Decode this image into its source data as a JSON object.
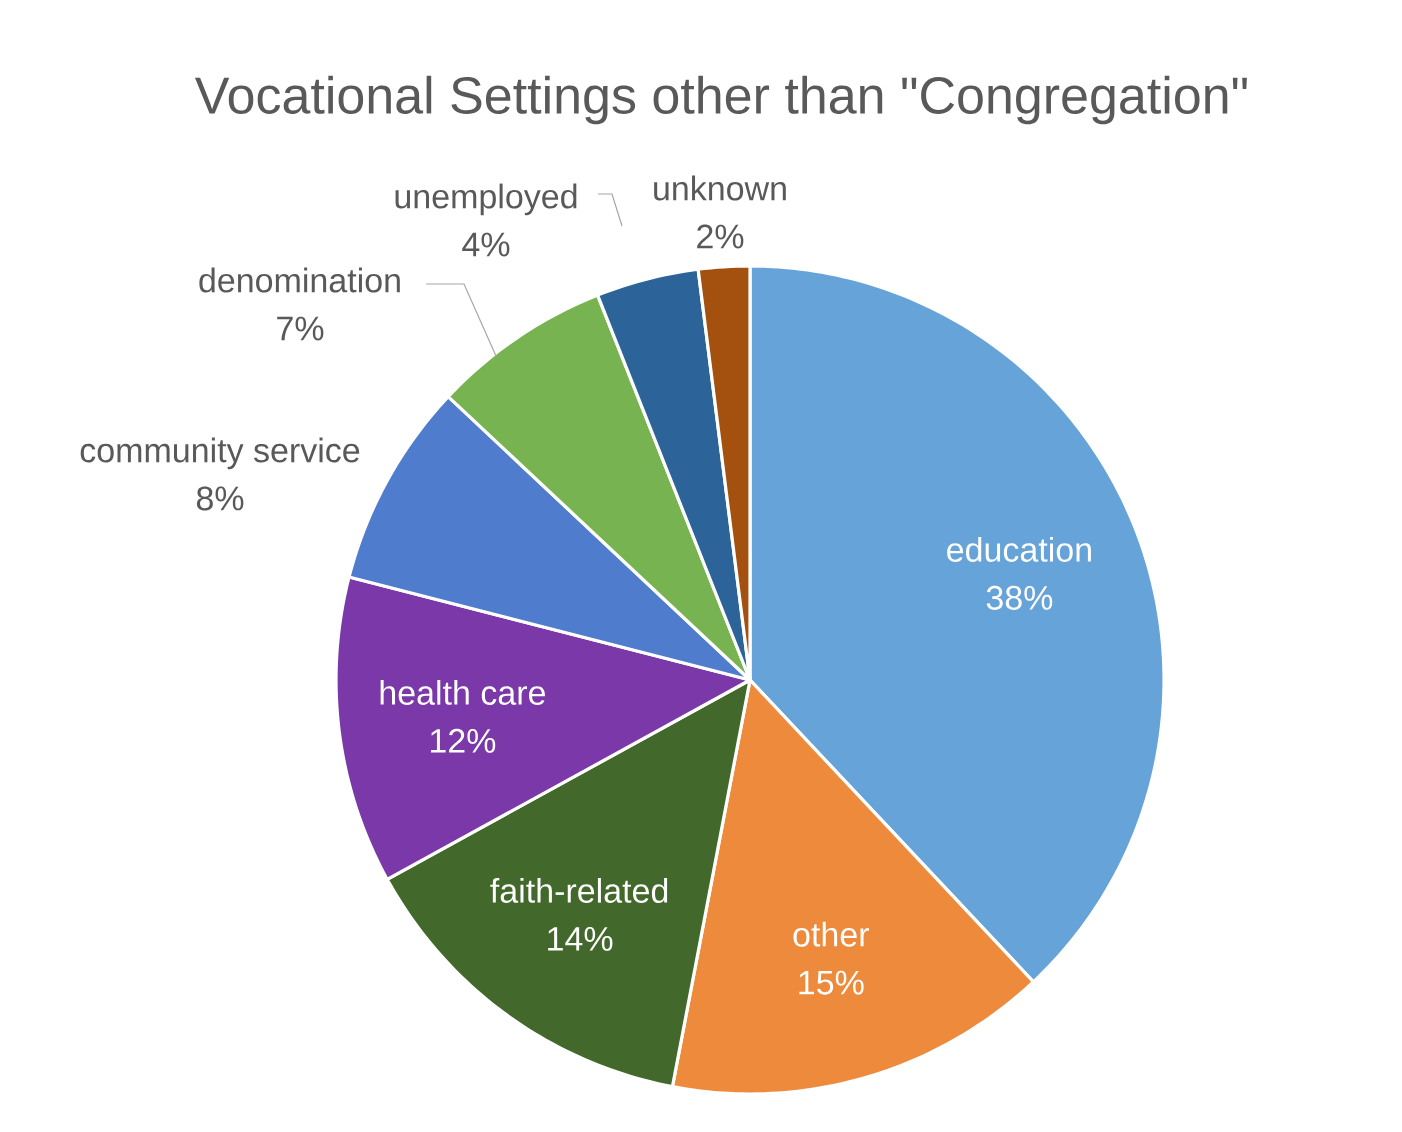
{
  "chart_data": {
    "type": "pie",
    "title": "Vocational Settings other than \"Congregation\"",
    "categories": [
      "education",
      "other",
      "faith-related",
      "health care",
      "community service",
      "denomination",
      "unemployed",
      "unknown"
    ],
    "values": [
      38,
      15,
      14,
      12,
      8,
      7,
      4,
      2
    ],
    "value_labels": [
      "38%",
      "15%",
      "14%",
      "12%",
      "8%",
      "7%",
      "4%",
      "2%"
    ],
    "colors": [
      "#65a3d8",
      "#ed8a3c",
      "#43682b",
      "#7a38a8",
      "#4f7ccc",
      "#78b352",
      "#2c6499",
      "#a4500f"
    ]
  }
}
